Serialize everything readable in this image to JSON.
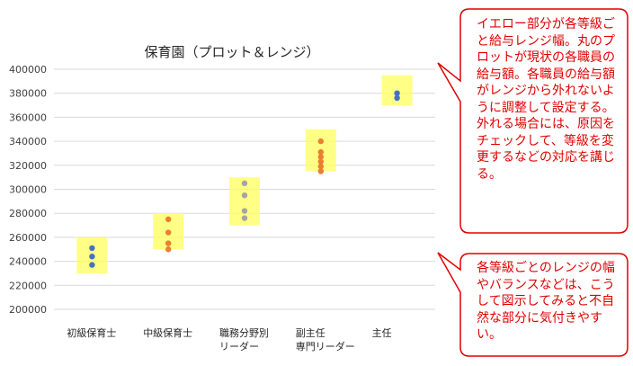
{
  "colors": {
    "band": "#ffff66",
    "gridline": "#d9d9d9",
    "axis_text": "#404040",
    "callout_border": "#e00000",
    "callout_text": "#e00000",
    "blue": "#4472c4",
    "orange": "#ed7d31",
    "gray": "#a5a5a5"
  },
  "chart_data": {
    "type": "scatter",
    "title": "保育園（プロット＆レンジ）",
    "xlabel": "",
    "ylabel": "",
    "ylim": [
      200000,
      400000
    ],
    "yticks": [
      200000,
      220000,
      240000,
      260000,
      280000,
      300000,
      320000,
      340000,
      360000,
      380000,
      400000
    ],
    "ytick_labels": [
      "200000",
      "220000",
      "240000",
      "260000",
      "280000",
      "300000",
      "320000",
      "340000",
      "360000",
      "380000",
      "400000"
    ],
    "grid": true,
    "categories": [
      {
        "lines": [
          "初級保育士"
        ],
        "range": [
          230000,
          260000
        ],
        "color_key": "blue",
        "points": [
          237000,
          244000,
          251000
        ]
      },
      {
        "lines": [
          "中級保育士"
        ],
        "range": [
          250000,
          280000
        ],
        "color_key": "orange",
        "points": [
          250000,
          255000,
          264000,
          275000
        ]
      },
      {
        "lines": [
          "職務分野別",
          "リーダー"
        ],
        "range": [
          270000,
          310000
        ],
        "color_key": "gray",
        "points": [
          276000,
          282000,
          295000,
          305000
        ]
      },
      {
        "lines": [
          "副主任",
          "専門リーダー"
        ],
        "range": [
          315000,
          350000
        ],
        "color_key": "orange",
        "points": [
          315000,
          319000,
          323000,
          327000,
          331000,
          340000
        ]
      },
      {
        "lines": [
          "主任"
        ],
        "range": [
          370000,
          395000
        ],
        "color_key": "blue",
        "points": [
          376000,
          380000
        ]
      }
    ]
  },
  "callouts": [
    {
      "text": "イエロー部分が各等級ごと給与レンジ幅。丸のプロットが現状の各職員の給与額。各職員の給与額がレンジから外れないように調整して設定する。外れる場合には、原因をチェックして、等級を変更するなどの対応を講じる。"
    },
    {
      "text": "各等級ごとのレンジの幅やバランスなどは、こうして図示してみると不自然な部分に気付きやすい。"
    }
  ]
}
